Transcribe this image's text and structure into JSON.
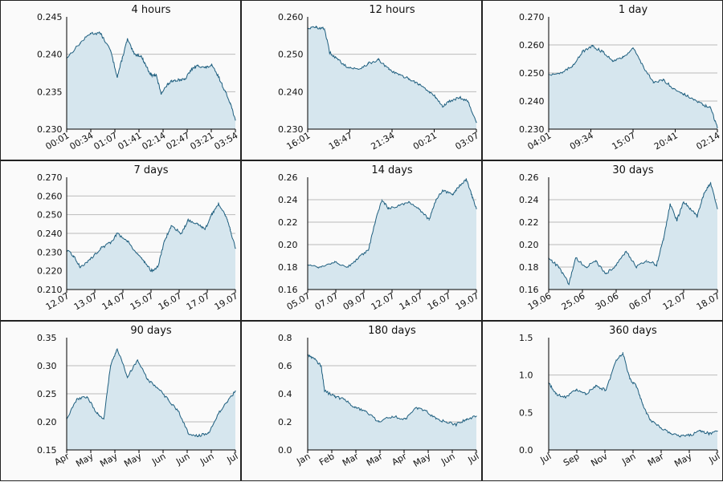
{
  "colors": {
    "line": "#1f5f7f",
    "fill": "#d6e6ee",
    "grid": "#bbbbbb",
    "axis": "#000000",
    "frame": "#222222",
    "background": "#fafafa"
  },
  "chart_data": [
    {
      "type": "area",
      "title": "4 hours",
      "ylim": [
        0.23,
        0.245
      ],
      "yticks": [
        "0.230",
        "0.235",
        "0.240",
        "0.245"
      ],
      "xticks": [
        "00:01",
        "00:34",
        "01:07",
        "01:41",
        "02:14",
        "02:47",
        "03:21",
        "03:54"
      ],
      "x": [
        0,
        0.08,
        0.14,
        0.2,
        0.26,
        0.3,
        0.33,
        0.36,
        0.4,
        0.44,
        0.47,
        0.5,
        0.53,
        0.56,
        0.6,
        0.63,
        0.67,
        0.7,
        0.74,
        0.78,
        0.82,
        0.86,
        0.9,
        0.94,
        0.97,
        1.0
      ],
      "values": [
        0.2395,
        0.2415,
        0.2428,
        0.2428,
        0.2405,
        0.237,
        0.2395,
        0.242,
        0.24,
        0.2398,
        0.2385,
        0.2372,
        0.2372,
        0.2348,
        0.236,
        0.2365,
        0.2366,
        0.2366,
        0.238,
        0.2385,
        0.2382,
        0.2385,
        0.237,
        0.235,
        0.2335,
        0.2312
      ]
    },
    {
      "type": "area",
      "title": "12 hours",
      "ylim": [
        0.23,
        0.26
      ],
      "yticks": [
        "0.230",
        "0.240",
        "0.250",
        "0.260"
      ],
      "xticks": [
        "16:01",
        "18:47",
        "21:34",
        "00:21",
        "03:07"
      ],
      "x": [
        0,
        0.05,
        0.1,
        0.13,
        0.18,
        0.24,
        0.3,
        0.36,
        0.42,
        0.48,
        0.54,
        0.6,
        0.66,
        0.72,
        0.76,
        0.8,
        0.84,
        0.9,
        0.95,
        1.0
      ],
      "values": [
        0.257,
        0.2572,
        0.2568,
        0.2505,
        0.2485,
        0.2465,
        0.246,
        0.2475,
        0.2485,
        0.246,
        0.2445,
        0.2435,
        0.242,
        0.24,
        0.2385,
        0.236,
        0.2375,
        0.2385,
        0.2375,
        0.2318
      ]
    },
    {
      "type": "area",
      "title": "1 day",
      "ylim": [
        0.23,
        0.27
      ],
      "yticks": [
        "0.230",
        "0.240",
        "0.250",
        "0.260",
        "0.270"
      ],
      "xticks": [
        "04:01",
        "09:34",
        "15:07",
        "20:41",
        "02:14"
      ],
      "x": [
        0,
        0.08,
        0.14,
        0.2,
        0.26,
        0.32,
        0.38,
        0.44,
        0.5,
        0.56,
        0.62,
        0.68,
        0.74,
        0.8,
        0.86,
        0.92,
        0.96,
        1.0
      ],
      "values": [
        0.2495,
        0.25,
        0.2525,
        0.2575,
        0.2595,
        0.2575,
        0.2545,
        0.2555,
        0.259,
        0.2525,
        0.2465,
        0.2475,
        0.2445,
        0.2425,
        0.2405,
        0.2385,
        0.2375,
        0.2305
      ]
    },
    {
      "type": "area",
      "title": "7 days",
      "ylim": [
        0.21,
        0.27
      ],
      "yticks": [
        "0.210",
        "0.220",
        "0.230",
        "0.240",
        "0.250",
        "0.260",
        "0.270"
      ],
      "xticks": [
        "12.07",
        "13.07",
        "14.07",
        "15.07",
        "16.07",
        "17.07",
        "19.07"
      ],
      "x": [
        0,
        0.04,
        0.08,
        0.14,
        0.2,
        0.26,
        0.3,
        0.36,
        0.42,
        0.46,
        0.5,
        0.54,
        0.58,
        0.62,
        0.68,
        0.72,
        0.78,
        0.82,
        0.86,
        0.9,
        0.94,
        0.97,
        1.0
      ],
      "values": [
        0.231,
        0.228,
        0.222,
        0.226,
        0.232,
        0.235,
        0.24,
        0.236,
        0.229,
        0.225,
        0.22,
        0.222,
        0.236,
        0.244,
        0.24,
        0.247,
        0.245,
        0.242,
        0.25,
        0.256,
        0.25,
        0.242,
        0.232
      ]
    },
    {
      "type": "area",
      "title": "14 days",
      "ylim": [
        0.16,
        0.26
      ],
      "yticks": [
        "0.16",
        "0.18",
        "0.20",
        "0.22",
        "0.24",
        "0.26"
      ],
      "xticks": [
        "05.07",
        "07.07",
        "09.07",
        "12.07",
        "14.07",
        "16.07",
        "19.07"
      ],
      "x": [
        0,
        0.08,
        0.16,
        0.24,
        0.3,
        0.36,
        0.4,
        0.44,
        0.48,
        0.54,
        0.6,
        0.66,
        0.72,
        0.76,
        0.8,
        0.86,
        0.9,
        0.94,
        0.97,
        1.0
      ],
      "values": [
        0.182,
        0.18,
        0.185,
        0.18,
        0.188,
        0.195,
        0.22,
        0.24,
        0.232,
        0.235,
        0.238,
        0.232,
        0.222,
        0.24,
        0.248,
        0.245,
        0.252,
        0.258,
        0.245,
        0.232
      ]
    },
    {
      "type": "area",
      "title": "30 days",
      "ylim": [
        0.16,
        0.26
      ],
      "yticks": [
        "0.16",
        "0.18",
        "0.20",
        "0.22",
        "0.24",
        "0.26"
      ],
      "xticks": [
        "19.06",
        "25.06",
        "30.06",
        "06.07",
        "12.07",
        "18.07"
      ],
      "x": [
        0,
        0.06,
        0.12,
        0.16,
        0.22,
        0.28,
        0.34,
        0.4,
        0.46,
        0.52,
        0.58,
        0.64,
        0.68,
        0.72,
        0.76,
        0.8,
        0.84,
        0.88,
        0.92,
        0.96,
        1.0
      ],
      "values": [
        0.188,
        0.18,
        0.165,
        0.188,
        0.18,
        0.185,
        0.174,
        0.182,
        0.194,
        0.18,
        0.186,
        0.182,
        0.205,
        0.236,
        0.222,
        0.238,
        0.232,
        0.225,
        0.245,
        0.255,
        0.232
      ]
    },
    {
      "type": "area",
      "title": "90 days",
      "ylim": [
        0.15,
        0.35
      ],
      "yticks": [
        "0.15",
        "0.20",
        "0.25",
        "0.30",
        "0.35"
      ],
      "xticks": [
        "Apr",
        "May",
        "May",
        "May",
        "Jun",
        "Jun",
        "Jun",
        "Jul"
      ],
      "x": [
        0,
        0.06,
        0.12,
        0.18,
        0.22,
        0.26,
        0.3,
        0.36,
        0.42,
        0.48,
        0.54,
        0.6,
        0.66,
        0.72,
        0.78,
        0.84,
        0.9,
        0.95,
        1.0
      ],
      "values": [
        0.205,
        0.24,
        0.245,
        0.215,
        0.205,
        0.3,
        0.33,
        0.28,
        0.31,
        0.275,
        0.26,
        0.24,
        0.22,
        0.18,
        0.175,
        0.18,
        0.215,
        0.235,
        0.255
      ]
    },
    {
      "type": "area",
      "title": "180 days",
      "ylim": [
        0.0,
        0.8
      ],
      "yticks": [
        "0.0",
        "0.2",
        "0.4",
        "0.6",
        "0.8"
      ],
      "xticks": [
        "Jan",
        "Feb",
        "Mar",
        "Mar",
        "Apr",
        "May",
        "Jun",
        "Jul"
      ],
      "x": [
        0,
        0.04,
        0.08,
        0.1,
        0.16,
        0.22,
        0.28,
        0.34,
        0.42,
        0.5,
        0.58,
        0.64,
        0.7,
        0.76,
        0.82,
        0.88,
        0.94,
        1.0
      ],
      "values": [
        0.68,
        0.65,
        0.6,
        0.42,
        0.38,
        0.36,
        0.3,
        0.28,
        0.2,
        0.24,
        0.22,
        0.3,
        0.28,
        0.22,
        0.2,
        0.18,
        0.22,
        0.24
      ]
    },
    {
      "type": "area",
      "title": "360 days",
      "ylim": [
        0.0,
        1.5
      ],
      "yticks": [
        "0.0",
        "0.5",
        "1.0",
        "1.5"
      ],
      "xticks": [
        "Jul",
        "Sep",
        "Nov",
        "Jan",
        "Mar",
        "May",
        "Jul"
      ],
      "x": [
        0,
        0.04,
        0.1,
        0.16,
        0.22,
        0.28,
        0.34,
        0.4,
        0.44,
        0.48,
        0.52,
        0.56,
        0.6,
        0.66,
        0.72,
        0.78,
        0.84,
        0.9,
        0.95,
        1.0
      ],
      "values": [
        0.9,
        0.75,
        0.7,
        0.8,
        0.75,
        0.85,
        0.8,
        1.2,
        1.3,
        0.95,
        0.85,
        0.6,
        0.4,
        0.3,
        0.22,
        0.18,
        0.2,
        0.25,
        0.22,
        0.25
      ]
    }
  ]
}
